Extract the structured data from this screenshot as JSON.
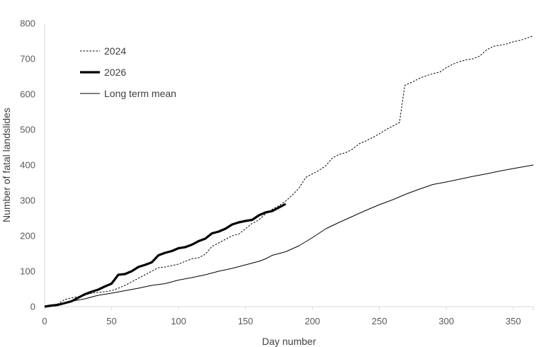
{
  "chart_data": {
    "type": "line",
    "xlabel": "Day number",
    "ylabel": "Number of fatal landslides",
    "xlim": [
      0,
      365
    ],
    "ylim": [
      0,
      800
    ],
    "xticks": [
      0,
      50,
      100,
      150,
      200,
      250,
      300,
      350
    ],
    "yticks": [
      0,
      100,
      200,
      300,
      400,
      500,
      600,
      700,
      800
    ],
    "grid": false,
    "legend_position": "top-left",
    "series": [
      {
        "name": "2024",
        "style": "dotted",
        "color": "#000000",
        "points": [
          [
            0,
            0
          ],
          [
            5,
            3
          ],
          [
            10,
            8
          ],
          [
            15,
            20
          ],
          [
            20,
            25
          ],
          [
            25,
            28
          ],
          [
            30,
            32
          ],
          [
            35,
            38
          ],
          [
            40,
            40
          ],
          [
            45,
            42
          ],
          [
            50,
            45
          ],
          [
            55,
            52
          ],
          [
            60,
            60
          ],
          [
            65,
            70
          ],
          [
            70,
            80
          ],
          [
            75,
            90
          ],
          [
            80,
            100
          ],
          [
            85,
            110
          ],
          [
            90,
            112
          ],
          [
            95,
            116
          ],
          [
            100,
            120
          ],
          [
            105,
            128
          ],
          [
            110,
            135
          ],
          [
            115,
            138
          ],
          [
            120,
            148
          ],
          [
            125,
            170
          ],
          [
            130,
            180
          ],
          [
            135,
            190
          ],
          [
            140,
            200
          ],
          [
            145,
            205
          ],
          [
            150,
            220
          ],
          [
            155,
            235
          ],
          [
            160,
            245
          ],
          [
            165,
            262
          ],
          [
            170,
            275
          ],
          [
            175,
            285
          ],
          [
            180,
            298
          ],
          [
            185,
            315
          ],
          [
            190,
            335
          ],
          [
            195,
            365
          ],
          [
            200,
            375
          ],
          [
            205,
            385
          ],
          [
            210,
            398
          ],
          [
            215,
            420
          ],
          [
            220,
            430
          ],
          [
            225,
            435
          ],
          [
            230,
            445
          ],
          [
            235,
            460
          ],
          [
            240,
            468
          ],
          [
            245,
            478
          ],
          [
            250,
            488
          ],
          [
            255,
            500
          ],
          [
            260,
            510
          ],
          [
            265,
            520
          ],
          [
            269,
            625
          ],
          [
            275,
            635
          ],
          [
            280,
            645
          ],
          [
            285,
            652
          ],
          [
            290,
            658
          ],
          [
            295,
            662
          ],
          [
            300,
            675
          ],
          [
            305,
            685
          ],
          [
            310,
            692
          ],
          [
            315,
            697
          ],
          [
            320,
            700
          ],
          [
            325,
            708
          ],
          [
            330,
            725
          ],
          [
            335,
            735
          ],
          [
            340,
            738
          ],
          [
            345,
            742
          ],
          [
            350,
            748
          ],
          [
            355,
            752
          ],
          [
            360,
            758
          ],
          [
            365,
            765
          ]
        ]
      },
      {
        "name": "2026",
        "style": "thick",
        "color": "#000000",
        "points": [
          [
            0,
            0
          ],
          [
            5,
            3
          ],
          [
            10,
            5
          ],
          [
            15,
            10
          ],
          [
            20,
            15
          ],
          [
            25,
            25
          ],
          [
            30,
            35
          ],
          [
            35,
            42
          ],
          [
            40,
            48
          ],
          [
            45,
            57
          ],
          [
            50,
            65
          ],
          [
            55,
            90
          ],
          [
            60,
            92
          ],
          [
            65,
            100
          ],
          [
            70,
            112
          ],
          [
            75,
            118
          ],
          [
            80,
            125
          ],
          [
            85,
            145
          ],
          [
            90,
            152
          ],
          [
            95,
            157
          ],
          [
            100,
            165
          ],
          [
            105,
            168
          ],
          [
            110,
            175
          ],
          [
            115,
            185
          ],
          [
            120,
            192
          ],
          [
            125,
            207
          ],
          [
            130,
            212
          ],
          [
            135,
            220
          ],
          [
            140,
            232
          ],
          [
            145,
            238
          ],
          [
            150,
            242
          ],
          [
            155,
            245
          ],
          [
            160,
            258
          ],
          [
            165,
            266
          ],
          [
            170,
            270
          ],
          [
            175,
            280
          ],
          [
            180,
            290
          ]
        ]
      },
      {
        "name": "Long term mean",
        "style": "solid",
        "color": "#000000",
        "points": [
          [
            0,
            0
          ],
          [
            10,
            5
          ],
          [
            20,
            15
          ],
          [
            30,
            22
          ],
          [
            40,
            32
          ],
          [
            50,
            38
          ],
          [
            60,
            45
          ],
          [
            70,
            52
          ],
          [
            80,
            60
          ],
          [
            90,
            65
          ],
          [
            100,
            75
          ],
          [
            110,
            82
          ],
          [
            120,
            90
          ],
          [
            130,
            100
          ],
          [
            140,
            108
          ],
          [
            150,
            118
          ],
          [
            160,
            128
          ],
          [
            165,
            135
          ],
          [
            170,
            145
          ],
          [
            180,
            155
          ],
          [
            190,
            172
          ],
          [
            200,
            195
          ],
          [
            210,
            220
          ],
          [
            220,
            238
          ],
          [
            230,
            255
          ],
          [
            240,
            272
          ],
          [
            250,
            288
          ],
          [
            260,
            302
          ],
          [
            270,
            318
          ],
          [
            280,
            332
          ],
          [
            290,
            345
          ],
          [
            300,
            352
          ],
          [
            310,
            360
          ],
          [
            320,
            368
          ],
          [
            330,
            375
          ],
          [
            340,
            383
          ],
          [
            350,
            390
          ],
          [
            365,
            400
          ]
        ]
      }
    ]
  }
}
